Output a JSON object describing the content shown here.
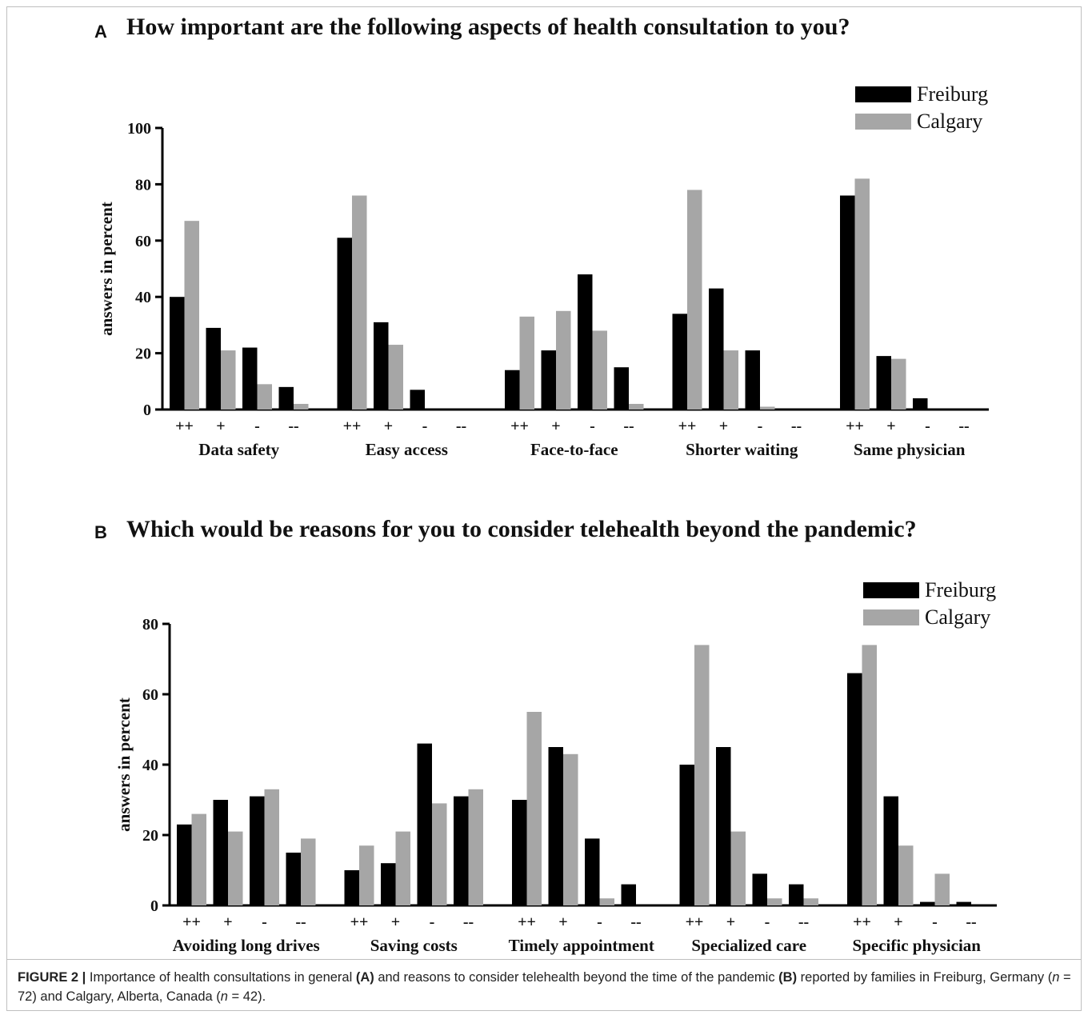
{
  "chart_data": [
    {
      "type": "bar",
      "panel": "A",
      "title": "How important are the following aspects of health consultation to you?",
      "ylabel": "answers in percent",
      "ylim": [
        0,
        100
      ],
      "yticks": [
        "0",
        "20",
        "40",
        "60",
        "80",
        "100"
      ],
      "groups": [
        "Data safety",
        "Easy access",
        "Face-to-face",
        "Shorter waiting",
        "Same physician"
      ],
      "categories": [
        "++",
        "+",
        "-",
        "--"
      ],
      "series": [
        {
          "name": "Freiburg",
          "color": "#000000",
          "values": [
            [
              40,
              29,
              22,
              8
            ],
            [
              61,
              31,
              7,
              0
            ],
            [
              14,
              21,
              48,
              15
            ],
            [
              34,
              43,
              21,
              0
            ],
            [
              76,
              19,
              4,
              0
            ]
          ]
        },
        {
          "name": "Calgary",
          "color": "#a6a6a6",
          "values": [
            [
              67,
              21,
              9,
              2
            ],
            [
              76,
              23,
              0,
              0
            ],
            [
              33,
              35,
              28,
              2
            ],
            [
              78,
              21,
              1,
              0
            ],
            [
              82,
              18,
              0,
              0
            ]
          ]
        }
      ],
      "legend": "top-right"
    },
    {
      "type": "bar",
      "panel": "B",
      "title": "Which would be reasons for you to consider telehealth beyond the pandemic?",
      "ylabel": "answers in percent",
      "ylim": [
        0,
        80
      ],
      "yticks": [
        "0",
        "20",
        "40",
        "60",
        "80"
      ],
      "groups": [
        "Avoiding long drives",
        "Saving costs",
        "Timely appointment",
        "Specialized care",
        "Specific physician"
      ],
      "categories": [
        "++",
        "+",
        "-",
        "--"
      ],
      "series": [
        {
          "name": "Freiburg",
          "color": "#000000",
          "values": [
            [
              23,
              30,
              31,
              15
            ],
            [
              10,
              12,
              46,
              31
            ],
            [
              30,
              45,
              19,
              6
            ],
            [
              40,
              45,
              9,
              6
            ],
            [
              66,
              31,
              1,
              1
            ]
          ]
        },
        {
          "name": "Calgary",
          "color": "#a6a6a6",
          "values": [
            [
              26,
              21,
              33,
              19
            ],
            [
              17,
              21,
              29,
              33
            ],
            [
              55,
              43,
              2,
              0
            ],
            [
              74,
              21,
              2,
              2
            ],
            [
              74,
              17,
              9,
              0
            ]
          ]
        }
      ],
      "legend": "top-right"
    }
  ],
  "caption": {
    "label": "FIGURE 2 |",
    "parts": [
      {
        "t": " Importance of health consultations in general "
      },
      {
        "t": "(A)",
        "b": true
      },
      {
        "t": " and reasons to consider telehealth beyond the time of the pandemic "
      },
      {
        "t": "(B)",
        "b": true
      },
      {
        "t": " reported by families in Freiburg, Germany ("
      },
      {
        "t": "n",
        "i": true
      },
      {
        "t": " = 72) and Calgary, Alberta, Canada ("
      },
      {
        "t": "n",
        "i": true
      },
      {
        "t": " = 42)."
      }
    ]
  }
}
